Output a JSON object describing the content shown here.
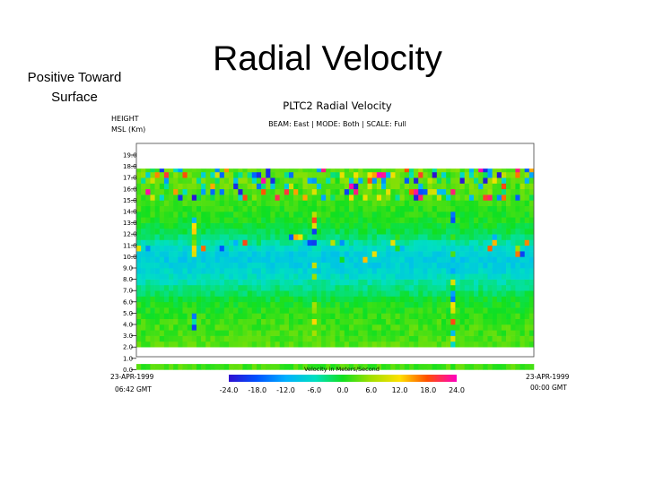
{
  "slide": {
    "title": "Radial Velocity",
    "side_note_line1": "Positive Toward",
    "side_note_line2": "Surface"
  },
  "chart_data": {
    "type": "heatmap",
    "title": "PLTC2 Radial Velocity",
    "subtitle": "BEAM: East  |  MODE: Both  |  SCALE: Full",
    "ylabel_line1": "HEIGHT",
    "ylabel_line2": "MSL (Km)",
    "y_ticks": [
      "19.0",
      "18.0",
      "17.0",
      "16.0",
      "15.0",
      "14.0",
      "13.0",
      "12.0",
      "11.0",
      "10.0",
      "9.0",
      "8.0",
      "7.0",
      "6.0",
      "5.0",
      "4.0",
      "3.0",
      "2.0",
      "1.0",
      "0.0"
    ],
    "ylim": [
      0,
      19
    ],
    "x_start": [
      "23-APR-1999",
      "06:42 GMT"
    ],
    "x_end": [
      "23-APR-1999",
      "00:00 GMT"
    ],
    "colorbar": {
      "label": "Velocity in Meters/Second",
      "ticks": [
        "-24.0",
        "-18.0",
        "-12.0",
        "-6.0",
        "0.0",
        "6.0",
        "12.0",
        "18.0",
        "24.0"
      ],
      "range": [
        -24,
        24
      ]
    },
    "approx_profile": {
      "height_km": [
        0,
        1,
        2,
        3,
        4,
        5,
        6,
        7,
        8,
        9,
        10,
        11,
        12,
        13,
        14,
        15,
        16,
        17,
        18
      ],
      "velocity_ms": [
        2,
        3,
        3,
        2,
        2,
        1,
        0,
        -3,
        -6,
        -8,
        -9,
        -6,
        -2,
        0,
        1,
        2,
        3,
        4,
        3
      ]
    },
    "colors": {
      "scale": [
        "#2020e0",
        "#0060ff",
        "#00c0ff",
        "#00e0a0",
        "#00e020",
        "#a0e000",
        "#ffe000",
        "#ff6000",
        "#ff0060",
        "#ff00c0"
      ]
    }
  }
}
